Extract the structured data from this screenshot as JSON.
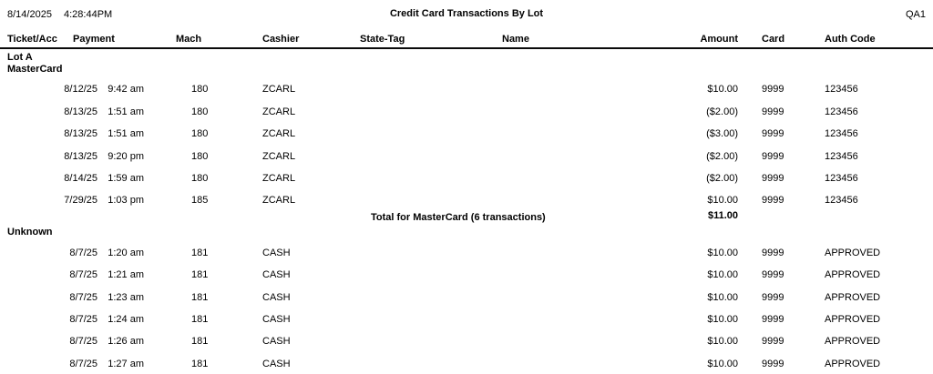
{
  "report": {
    "generated_date": "8/14/2025",
    "generated_time": "4:28:44PM",
    "title": "Credit Card Transactions By Lot",
    "station": "QA1"
  },
  "columns": {
    "ticket": "Ticket/Acc",
    "payment": "Payment",
    "mach": "Mach",
    "cashier": "Cashier",
    "state_tag": "State-Tag",
    "name": "Name",
    "amount": "Amount",
    "card": "Card",
    "auth": "Auth Code"
  },
  "groups": [
    {
      "lot": "Lot A",
      "card_type": "MasterCard",
      "rows": [
        {
          "ticket": "",
          "date": "8/12/25",
          "time": "9:42 am",
          "mach": "180",
          "cashier": "ZCARL",
          "state_tag": "",
          "name": "",
          "amount": "$10.00",
          "card": "9999",
          "auth": "123456"
        },
        {
          "ticket": "",
          "date": "8/13/25",
          "time": "1:51 am",
          "mach": "180",
          "cashier": "ZCARL",
          "state_tag": "",
          "name": "",
          "amount": "($2.00)",
          "card": "9999",
          "auth": "123456"
        },
        {
          "ticket": "",
          "date": "8/13/25",
          "time": "1:51 am",
          "mach": "180",
          "cashier": "ZCARL",
          "state_tag": "",
          "name": "",
          "amount": "($3.00)",
          "card": "9999",
          "auth": "123456"
        },
        {
          "ticket": "",
          "date": "8/13/25",
          "time": "9:20 pm",
          "mach": "180",
          "cashier": "ZCARL",
          "state_tag": "",
          "name": "",
          "amount": "($2.00)",
          "card": "9999",
          "auth": "123456"
        },
        {
          "ticket": "",
          "date": "8/14/25",
          "time": "1:59 am",
          "mach": "180",
          "cashier": "ZCARL",
          "state_tag": "",
          "name": "",
          "amount": "($2.00)",
          "card": "9999",
          "auth": "123456"
        },
        {
          "ticket": "",
          "date": "7/29/25",
          "time": "1:03 pm",
          "mach": "185",
          "cashier": "ZCARL",
          "state_tag": "",
          "name": "",
          "amount": "$10.00",
          "card": "9999",
          "auth": "123456"
        }
      ],
      "total_label": "Total for MasterCard (6 transactions)",
      "total_amount": "$11.00"
    },
    {
      "lot": "Unknown",
      "card_type": "",
      "rows": [
        {
          "ticket": "",
          "date": "8/7/25",
          "time": "1:20 am",
          "mach": "181",
          "cashier": "CASH",
          "state_tag": "",
          "name": "",
          "amount": "$10.00",
          "card": "9999",
          "auth": "APPROVED"
        },
        {
          "ticket": "",
          "date": "8/7/25",
          "time": "1:21 am",
          "mach": "181",
          "cashier": "CASH",
          "state_tag": "",
          "name": "",
          "amount": "$10.00",
          "card": "9999",
          "auth": "APPROVED"
        },
        {
          "ticket": "",
          "date": "8/7/25",
          "time": "1:23 am",
          "mach": "181",
          "cashier": "CASH",
          "state_tag": "",
          "name": "",
          "amount": "$10.00",
          "card": "9999",
          "auth": "APPROVED"
        },
        {
          "ticket": "",
          "date": "8/7/25",
          "time": "1:24 am",
          "mach": "181",
          "cashier": "CASH",
          "state_tag": "",
          "name": "",
          "amount": "$10.00",
          "card": "9999",
          "auth": "APPROVED"
        },
        {
          "ticket": "",
          "date": "8/7/25",
          "time": "1:26 am",
          "mach": "181",
          "cashier": "CASH",
          "state_tag": "",
          "name": "",
          "amount": "$10.00",
          "card": "9999",
          "auth": "APPROVED"
        },
        {
          "ticket": "",
          "date": "8/7/25",
          "time": "1:27 am",
          "mach": "181",
          "cashier": "CASH",
          "state_tag": "",
          "name": "",
          "amount": "$10.00",
          "card": "9999",
          "auth": "APPROVED"
        }
      ],
      "total_label": "",
      "total_amount": ""
    }
  ]
}
